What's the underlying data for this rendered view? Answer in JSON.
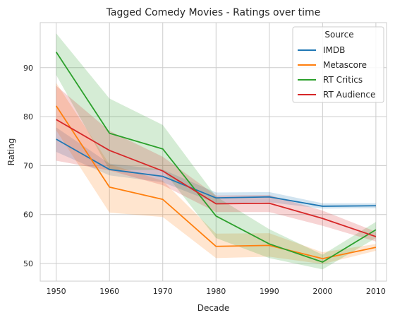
{
  "chart_data": {
    "type": "line",
    "title": "Tagged Comedy Movies - Ratings over time",
    "xlabel": "Decade",
    "ylabel": "Rating",
    "x": [
      1950,
      1960,
      1970,
      1980,
      1990,
      2000,
      2010
    ],
    "xlim": [
      1947,
      2012
    ],
    "ylim": [
      46.4,
      99.2
    ],
    "yticks": [
      50,
      60,
      70,
      80,
      90
    ],
    "grid": true,
    "legend": {
      "title": "Source",
      "placement": "top-right"
    },
    "series": [
      {
        "name": "IMDB",
        "color": "#1f77b4",
        "values": [
          75.4,
          69.2,
          67.8,
          63.4,
          63.6,
          61.7,
          61.8
        ],
        "lower": [
          72.8,
          68.0,
          66.6,
          62.3,
          62.5,
          61.2,
          61.3
        ],
        "upper": [
          77.8,
          70.4,
          69.2,
          64.5,
          64.6,
          62.3,
          62.3
        ]
      },
      {
        "name": "Metascore",
        "color": "#ff7f0e",
        "values": [
          82.2,
          65.6,
          63.1,
          53.5,
          53.7,
          51.0,
          53.3
        ],
        "lower": [
          77.2,
          60.4,
          59.5,
          51.1,
          51.4,
          49.9,
          52.6
        ],
        "upper": [
          86.9,
          70.3,
          66.9,
          56.1,
          56.2,
          52.3,
          54.0
        ]
      },
      {
        "name": "RT Critics",
        "color": "#2ca02c",
        "values": [
          93.2,
          76.6,
          73.4,
          59.7,
          54.0,
          50.3,
          56.9
        ],
        "lower": [
          88.5,
          69.1,
          69.1,
          55.2,
          51.1,
          48.8,
          55.2
        ],
        "upper": [
          97.0,
          83.7,
          78.3,
          63.7,
          57.0,
          51.8,
          58.5
        ]
      },
      {
        "name": "RT Audience",
        "color": "#d62728",
        "values": [
          79.4,
          73.1,
          68.9,
          62.2,
          62.3,
          59.2,
          55.5
        ],
        "lower": [
          71.0,
          69.0,
          66.0,
          60.5,
          60.5,
          57.7,
          54.5
        ],
        "upper": [
          86.3,
          77.1,
          71.8,
          63.9,
          64.0,
          60.8,
          56.5
        ]
      }
    ]
  }
}
